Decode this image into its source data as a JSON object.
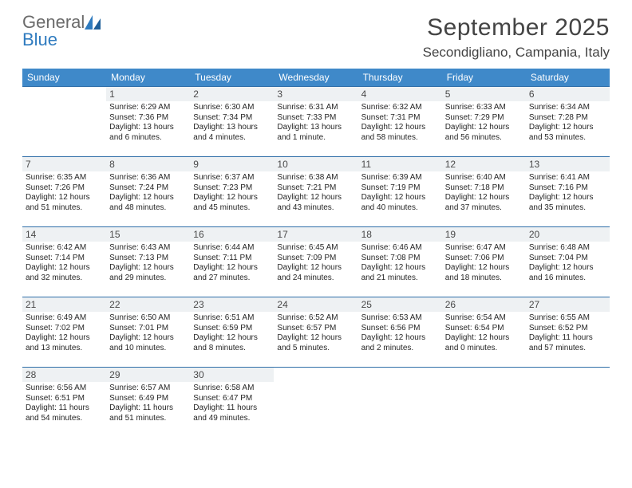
{
  "logo": {
    "word1": "General",
    "word2": "Blue"
  },
  "title": "September 2025",
  "location": "Secondigliano, Campania, Italy",
  "colors": {
    "header_bg": "#3f89c9",
    "header_text": "#ffffff",
    "row_border": "#2f6ea8",
    "daynum_bg": "#eef1f3",
    "logo_gray": "#6a6a6a",
    "logo_blue": "#2f7bbf"
  },
  "dow": [
    "Sunday",
    "Monday",
    "Tuesday",
    "Wednesday",
    "Thursday",
    "Friday",
    "Saturday"
  ],
  "weeks": [
    [
      {
        "n": "",
        "lines": []
      },
      {
        "n": "1",
        "lines": [
          "Sunrise: 6:29 AM",
          "Sunset: 7:36 PM",
          "Daylight: 13 hours",
          "and 6 minutes."
        ]
      },
      {
        "n": "2",
        "lines": [
          "Sunrise: 6:30 AM",
          "Sunset: 7:34 PM",
          "Daylight: 13 hours",
          "and 4 minutes."
        ]
      },
      {
        "n": "3",
        "lines": [
          "Sunrise: 6:31 AM",
          "Sunset: 7:33 PM",
          "Daylight: 13 hours",
          "and 1 minute."
        ]
      },
      {
        "n": "4",
        "lines": [
          "Sunrise: 6:32 AM",
          "Sunset: 7:31 PM",
          "Daylight: 12 hours",
          "and 58 minutes."
        ]
      },
      {
        "n": "5",
        "lines": [
          "Sunrise: 6:33 AM",
          "Sunset: 7:29 PM",
          "Daylight: 12 hours",
          "and 56 minutes."
        ]
      },
      {
        "n": "6",
        "lines": [
          "Sunrise: 6:34 AM",
          "Sunset: 7:28 PM",
          "Daylight: 12 hours",
          "and 53 minutes."
        ]
      }
    ],
    [
      {
        "n": "7",
        "lines": [
          "Sunrise: 6:35 AM",
          "Sunset: 7:26 PM",
          "Daylight: 12 hours",
          "and 51 minutes."
        ]
      },
      {
        "n": "8",
        "lines": [
          "Sunrise: 6:36 AM",
          "Sunset: 7:24 PM",
          "Daylight: 12 hours",
          "and 48 minutes."
        ]
      },
      {
        "n": "9",
        "lines": [
          "Sunrise: 6:37 AM",
          "Sunset: 7:23 PM",
          "Daylight: 12 hours",
          "and 45 minutes."
        ]
      },
      {
        "n": "10",
        "lines": [
          "Sunrise: 6:38 AM",
          "Sunset: 7:21 PM",
          "Daylight: 12 hours",
          "and 43 minutes."
        ]
      },
      {
        "n": "11",
        "lines": [
          "Sunrise: 6:39 AM",
          "Sunset: 7:19 PM",
          "Daylight: 12 hours",
          "and 40 minutes."
        ]
      },
      {
        "n": "12",
        "lines": [
          "Sunrise: 6:40 AM",
          "Sunset: 7:18 PM",
          "Daylight: 12 hours",
          "and 37 minutes."
        ]
      },
      {
        "n": "13",
        "lines": [
          "Sunrise: 6:41 AM",
          "Sunset: 7:16 PM",
          "Daylight: 12 hours",
          "and 35 minutes."
        ]
      }
    ],
    [
      {
        "n": "14",
        "lines": [
          "Sunrise: 6:42 AM",
          "Sunset: 7:14 PM",
          "Daylight: 12 hours",
          "and 32 minutes."
        ]
      },
      {
        "n": "15",
        "lines": [
          "Sunrise: 6:43 AM",
          "Sunset: 7:13 PM",
          "Daylight: 12 hours",
          "and 29 minutes."
        ]
      },
      {
        "n": "16",
        "lines": [
          "Sunrise: 6:44 AM",
          "Sunset: 7:11 PM",
          "Daylight: 12 hours",
          "and 27 minutes."
        ]
      },
      {
        "n": "17",
        "lines": [
          "Sunrise: 6:45 AM",
          "Sunset: 7:09 PM",
          "Daylight: 12 hours",
          "and 24 minutes."
        ]
      },
      {
        "n": "18",
        "lines": [
          "Sunrise: 6:46 AM",
          "Sunset: 7:08 PM",
          "Daylight: 12 hours",
          "and 21 minutes."
        ]
      },
      {
        "n": "19",
        "lines": [
          "Sunrise: 6:47 AM",
          "Sunset: 7:06 PM",
          "Daylight: 12 hours",
          "and 18 minutes."
        ]
      },
      {
        "n": "20",
        "lines": [
          "Sunrise: 6:48 AM",
          "Sunset: 7:04 PM",
          "Daylight: 12 hours",
          "and 16 minutes."
        ]
      }
    ],
    [
      {
        "n": "21",
        "lines": [
          "Sunrise: 6:49 AM",
          "Sunset: 7:02 PM",
          "Daylight: 12 hours",
          "and 13 minutes."
        ]
      },
      {
        "n": "22",
        "lines": [
          "Sunrise: 6:50 AM",
          "Sunset: 7:01 PM",
          "Daylight: 12 hours",
          "and 10 minutes."
        ]
      },
      {
        "n": "23",
        "lines": [
          "Sunrise: 6:51 AM",
          "Sunset: 6:59 PM",
          "Daylight: 12 hours",
          "and 8 minutes."
        ]
      },
      {
        "n": "24",
        "lines": [
          "Sunrise: 6:52 AM",
          "Sunset: 6:57 PM",
          "Daylight: 12 hours",
          "and 5 minutes."
        ]
      },
      {
        "n": "25",
        "lines": [
          "Sunrise: 6:53 AM",
          "Sunset: 6:56 PM",
          "Daylight: 12 hours",
          "and 2 minutes."
        ]
      },
      {
        "n": "26",
        "lines": [
          "Sunrise: 6:54 AM",
          "Sunset: 6:54 PM",
          "Daylight: 12 hours",
          "and 0 minutes."
        ]
      },
      {
        "n": "27",
        "lines": [
          "Sunrise: 6:55 AM",
          "Sunset: 6:52 PM",
          "Daylight: 11 hours",
          "and 57 minutes."
        ]
      }
    ],
    [
      {
        "n": "28",
        "lines": [
          "Sunrise: 6:56 AM",
          "Sunset: 6:51 PM",
          "Daylight: 11 hours",
          "and 54 minutes."
        ]
      },
      {
        "n": "29",
        "lines": [
          "Sunrise: 6:57 AM",
          "Sunset: 6:49 PM",
          "Daylight: 11 hours",
          "and 51 minutes."
        ]
      },
      {
        "n": "30",
        "lines": [
          "Sunrise: 6:58 AM",
          "Sunset: 6:47 PM",
          "Daylight: 11 hours",
          "and 49 minutes."
        ]
      },
      {
        "n": "",
        "lines": []
      },
      {
        "n": "",
        "lines": []
      },
      {
        "n": "",
        "lines": []
      },
      {
        "n": "",
        "lines": []
      }
    ]
  ]
}
